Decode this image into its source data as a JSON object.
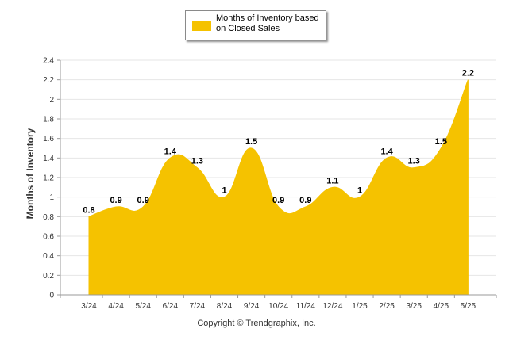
{
  "legend": {
    "label": "Months of Inventory based on Closed Sales"
  },
  "copyright": "Copyright © Trendgraphix, Inc.",
  "colors": {
    "series": "#f5c200",
    "grid": "#e6e6e6",
    "axis": "#999999"
  },
  "chart_data": {
    "type": "area",
    "ylabel": "Months of Inventory",
    "xlabel": "",
    "ylim": [
      0,
      2.4
    ],
    "yticks": [
      "0",
      "0.2",
      "0.4",
      "0.6",
      "0.8",
      "1",
      "1.2",
      "1.4",
      "1.6",
      "1.8",
      "2",
      "2.2",
      "2.4"
    ],
    "grid": true,
    "legend_position": "top-center",
    "categories": [
      "3/24",
      "4/24",
      "5/24",
      "6/24",
      "7/24",
      "8/24",
      "9/24",
      "10/24",
      "11/24",
      "12/24",
      "1/25",
      "2/25",
      "3/25",
      "4/25",
      "5/25"
    ],
    "series": [
      {
        "name": "Months of Inventory based on Closed Sales",
        "values": [
          0.8,
          0.9,
          0.9,
          1.4,
          1.3,
          1,
          1.5,
          0.9,
          0.9,
          1.1,
          1,
          1.4,
          1.3,
          1.5,
          2.2
        ],
        "labels": [
          "0.8",
          "0.9",
          "0.9",
          "1.4",
          "1.3",
          "1",
          "1.5",
          "0.9",
          "0.9",
          "1.1",
          "1",
          "1.4",
          "1.3",
          "1.5",
          "2.2"
        ]
      }
    ]
  }
}
